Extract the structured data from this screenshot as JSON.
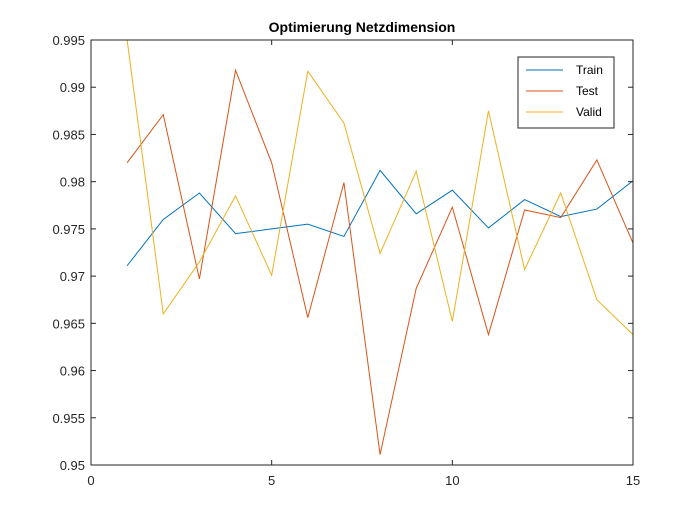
{
  "chart_data": {
    "type": "line",
    "title": "Optimierung Netzdimension",
    "xlabel": "",
    "ylabel": "",
    "xlim": [
      0,
      15
    ],
    "ylim": [
      0.95,
      0.995
    ],
    "xticks": [
      "0",
      "5",
      "10",
      "15"
    ],
    "yticks": [
      "0.95",
      "0.955",
      "0.96",
      "0.965",
      "0.97",
      "0.975",
      "0.98",
      "0.985",
      "0.99",
      "0.995"
    ],
    "grid": false,
    "legend": "top-right",
    "x": [
      1,
      2,
      3,
      4,
      5,
      6,
      7,
      8,
      9,
      10,
      11,
      12,
      13,
      14,
      15
    ],
    "series": [
      {
        "name": "Train",
        "color": "#0072BD",
        "values": [
          0.9711,
          0.976,
          0.9788,
          0.9745,
          0.975,
          0.9755,
          0.9742,
          0.9812,
          0.9766,
          0.9791,
          0.9751,
          0.9781,
          0.9763,
          0.9771,
          0.9801
        ]
      },
      {
        "name": "Test",
        "color": "#D95319",
        "values": [
          0.982,
          0.9871,
          0.9697,
          0.9918,
          0.982,
          0.9656,
          0.9799,
          0.9511,
          0.9687,
          0.9773,
          0.9638,
          0.977,
          0.9762,
          0.9823,
          0.9735
        ]
      },
      {
        "name": "Valid",
        "color": "#EDB120",
        "values": [
          0.995,
          0.966,
          0.9715,
          0.9785,
          0.9701,
          0.9917,
          0.9862,
          0.9724,
          0.9811,
          0.9652,
          0.9875,
          0.9707,
          0.9788,
          0.9675,
          0.9638
        ]
      }
    ]
  }
}
